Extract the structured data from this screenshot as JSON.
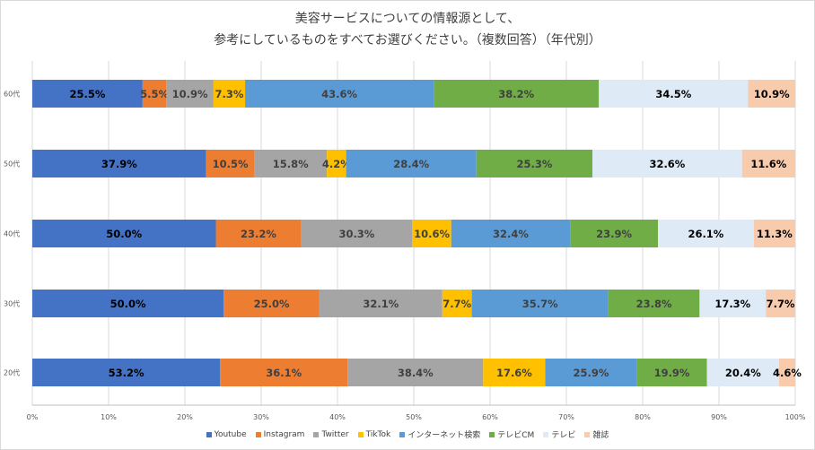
{
  "chart_data": {
    "type": "stacked-bar-100",
    "title_line1": "美容サービスについての情報源として、",
    "title_line2": "参考にしているものをすべてお選びください。（複数回答）（年代別）",
    "categories": [
      "60代",
      "50代",
      "40代",
      "30代",
      "20代"
    ],
    "x_ticks": [
      "0%",
      "10%",
      "20%",
      "30%",
      "40%",
      "50%",
      "60%",
      "70%",
      "80%",
      "90%",
      "100%"
    ],
    "xlim": [
      0,
      100
    ],
    "series": [
      {
        "name": "Youtube",
        "color": "#4472c4",
        "label_color": "#000000",
        "values": [
          25.5,
          37.9,
          50.0,
          50.0,
          53.2
        ]
      },
      {
        "name": "Instagram",
        "color": "#ed7d31",
        "label_color": "#404040",
        "values": [
          5.5,
          10.5,
          23.2,
          25.0,
          36.1
        ]
      },
      {
        "name": "Twitter",
        "color": "#a5a5a5",
        "label_color": "#404040",
        "values": [
          10.9,
          15.8,
          30.3,
          32.1,
          38.4
        ]
      },
      {
        "name": "TikTok",
        "color": "#ffc000",
        "label_color": "#404040",
        "values": [
          7.3,
          4.2,
          10.6,
          7.7,
          17.6
        ]
      },
      {
        "name": "インターネット検索",
        "color": "#5b9bd5",
        "label_color": "#404040",
        "values": [
          43.6,
          28.4,
          32.4,
          35.7,
          25.9
        ]
      },
      {
        "name": "テレビCM",
        "color": "#70ad47",
        "label_color": "#404040",
        "values": [
          38.2,
          25.3,
          23.9,
          23.8,
          19.9
        ]
      },
      {
        "name": "テレビ",
        "color": "#deebf7",
        "label_color": "#000000",
        "values": [
          34.5,
          32.6,
          26.1,
          17.3,
          20.4
        ]
      },
      {
        "name": "雑誌",
        "color": "#f8cbad",
        "label_color": "#000000",
        "values": [
          10.9,
          11.6,
          11.3,
          7.7,
          4.6
        ]
      }
    ],
    "legend_position": "bottom",
    "grid": true
  }
}
